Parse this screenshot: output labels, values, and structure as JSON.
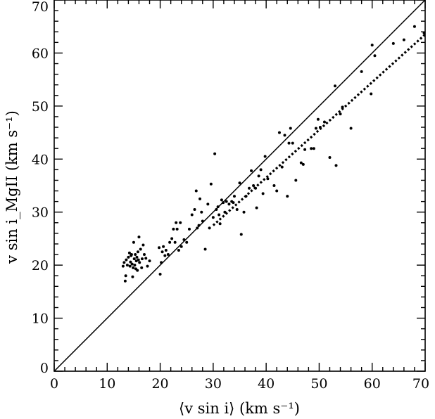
{
  "chart_data": {
    "type": "scatter",
    "xlabel": "⟨v sin i⟩ (km s⁻¹)",
    "ylabel": "v sin i_MgII (km s⁻¹)",
    "xlim": [
      0,
      70
    ],
    "ylim": [
      0,
      70
    ],
    "x_ticks": [
      0,
      10,
      20,
      30,
      40,
      50,
      60,
      70
    ],
    "y_ticks": [
      0,
      10,
      20,
      30,
      40,
      50,
      60,
      70
    ],
    "grid": false,
    "lines": [
      {
        "style": "solid",
        "x": [
          0,
          70
        ],
        "y": [
          0,
          70
        ]
      },
      {
        "style": "dotted",
        "x": [
          30,
          70
        ],
        "y": [
          27.5,
          63.5
        ]
      }
    ],
    "series": [
      {
        "points": [
          [
            13.0,
            19.8
          ],
          [
            13.2,
            20.5
          ],
          [
            13.4,
            17.0
          ],
          [
            13.5,
            18.0
          ],
          [
            13.6,
            21.0
          ],
          [
            13.8,
            20.0
          ],
          [
            14.0,
            21.5
          ],
          [
            14.2,
            22.3
          ],
          [
            14.3,
            19.8
          ],
          [
            14.4,
            20.6
          ],
          [
            14.5,
            21.8
          ],
          [
            14.6,
            22.0
          ],
          [
            14.7,
            20.2
          ],
          [
            14.8,
            17.8
          ],
          [
            14.9,
            19.5
          ],
          [
            15.0,
            24.3
          ],
          [
            15.1,
            21.2
          ],
          [
            15.2,
            20.0
          ],
          [
            15.3,
            22.0
          ],
          [
            15.4,
            19.3
          ],
          [
            15.5,
            20.8
          ],
          [
            15.6,
            21.5
          ],
          [
            15.7,
            19.0
          ],
          [
            15.8,
            22.5
          ],
          [
            15.9,
            21.0
          ],
          [
            16.0,
            25.3
          ],
          [
            16.1,
            20.5
          ],
          [
            16.3,
            23.0
          ],
          [
            16.5,
            19.5
          ],
          [
            16.6,
            21.2
          ],
          [
            16.8,
            23.8
          ],
          [
            17.0,
            22.0
          ],
          [
            17.3,
            21.3
          ],
          [
            17.6,
            19.8
          ],
          [
            18.0,
            20.8
          ],
          [
            19.8,
            23.3
          ],
          [
            20.0,
            18.3
          ],
          [
            20.2,
            20.5
          ],
          [
            20.4,
            22.5
          ],
          [
            20.6,
            23.5
          ],
          [
            20.9,
            21.8
          ],
          [
            21.1,
            22.8
          ],
          [
            21.5,
            22.0
          ],
          [
            21.8,
            24.3
          ],
          [
            22.2,
            25.0
          ],
          [
            22.5,
            26.8
          ],
          [
            22.8,
            24.3
          ],
          [
            23.0,
            28.0
          ],
          [
            23.2,
            26.8
          ],
          [
            23.5,
            22.8
          ],
          [
            23.8,
            28.0
          ],
          [
            24.0,
            23.5
          ],
          [
            24.5,
            24.8
          ],
          [
            25.0,
            24.3
          ],
          [
            25.5,
            26.8
          ],
          [
            26.0,
            29.5
          ],
          [
            26.5,
            30.5
          ],
          [
            26.8,
            34.0
          ],
          [
            27.0,
            27.0
          ],
          [
            27.3,
            27.5
          ],
          [
            27.5,
            32.5
          ],
          [
            27.8,
            30.0
          ],
          [
            28.0,
            28.3
          ],
          [
            28.5,
            23.0
          ],
          [
            29.0,
            31.5
          ],
          [
            29.3,
            27.0
          ],
          [
            29.6,
            35.3
          ],
          [
            30.0,
            29.0
          ],
          [
            30.3,
            41.0
          ],
          [
            30.6,
            30.5
          ],
          [
            30.9,
            31.0
          ],
          [
            31.1,
            29.5
          ],
          [
            31.3,
            27.8
          ],
          [
            31.6,
            32.3
          ],
          [
            31.9,
            31.8
          ],
          [
            32.2,
            30.0
          ],
          [
            32.5,
            32.0
          ],
          [
            33.0,
            31.5
          ],
          [
            33.5,
            32.0
          ],
          [
            33.8,
            31.8
          ],
          [
            34.0,
            33.0
          ],
          [
            34.5,
            30.5
          ],
          [
            35.0,
            35.5
          ],
          [
            35.3,
            25.8
          ],
          [
            35.8,
            30.0
          ],
          [
            36.2,
            33.0
          ],
          [
            36.8,
            34.5
          ],
          [
            37.2,
            37.8
          ],
          [
            37.6,
            35.0
          ],
          [
            38.0,
            34.5
          ],
          [
            38.2,
            30.8
          ],
          [
            38.6,
            36.8
          ],
          [
            39.0,
            38.0
          ],
          [
            39.4,
            33.5
          ],
          [
            39.8,
            40.5
          ],
          [
            40.3,
            36.3
          ],
          [
            41.5,
            35.0
          ],
          [
            42.0,
            34.0
          ],
          [
            42.5,
            45.0
          ],
          [
            43.0,
            38.5
          ],
          [
            43.5,
            44.5
          ],
          [
            44.0,
            33.0
          ],
          [
            44.3,
            43.0
          ],
          [
            44.6,
            45.8
          ],
          [
            45.0,
            43.0
          ],
          [
            45.6,
            36.0
          ],
          [
            46.6,
            39.3
          ],
          [
            47.0,
            39.0
          ],
          [
            47.3,
            41.8
          ],
          [
            48.5,
            42.0
          ],
          [
            49.0,
            42.0
          ],
          [
            49.4,
            45.8
          ],
          [
            49.8,
            47.5
          ],
          [
            50.2,
            46.0
          ],
          [
            51.0,
            47.0
          ],
          [
            52.0,
            40.3
          ],
          [
            53.0,
            53.8
          ],
          [
            53.2,
            38.8
          ],
          [
            54.0,
            48.5
          ],
          [
            54.4,
            49.8
          ],
          [
            56.0,
            45.8
          ],
          [
            58.0,
            56.5
          ],
          [
            59.8,
            52.3
          ],
          [
            60.0,
            61.5
          ],
          [
            60.5,
            59.5
          ],
          [
            64.0,
            61.8
          ],
          [
            66.0,
            62.5
          ],
          [
            68.0,
            65.0
          ],
          [
            69.8,
            63.8
          ]
        ]
      }
    ]
  }
}
